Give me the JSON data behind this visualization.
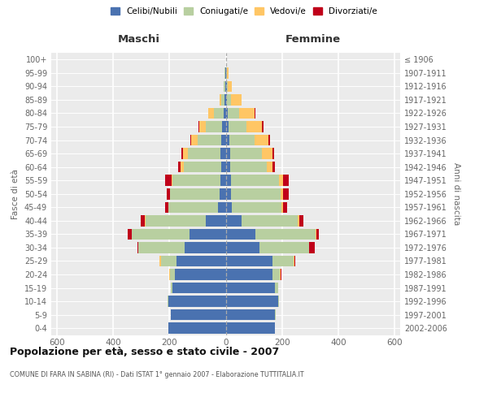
{
  "age_groups": [
    "0-4",
    "5-9",
    "10-14",
    "15-19",
    "20-24",
    "25-29",
    "30-34",
    "35-39",
    "40-44",
    "45-49",
    "50-54",
    "55-59",
    "60-64",
    "65-69",
    "70-74",
    "75-79",
    "80-84",
    "85-89",
    "90-94",
    "95-99",
    "100+"
  ],
  "birth_years": [
    "2002-2006",
    "1997-2001",
    "1992-1996",
    "1987-1991",
    "1982-1986",
    "1977-1981",
    "1972-1976",
    "1967-1971",
    "1962-1966",
    "1957-1961",
    "1952-1956",
    "1947-1951",
    "1942-1946",
    "1937-1941",
    "1932-1936",
    "1927-1931",
    "1922-1926",
    "1917-1921",
    "1912-1916",
    "1907-1911",
    "≤ 1906"
  ],
  "maschi": {
    "celibi": [
      205,
      195,
      205,
      190,
      180,
      175,
      145,
      130,
      70,
      28,
      22,
      18,
      15,
      18,
      15,
      12,
      8,
      5,
      2,
      1,
      0
    ],
    "coniugati": [
      0,
      0,
      2,
      5,
      18,
      55,
      165,
      205,
      215,
      175,
      175,
      170,
      135,
      115,
      85,
      60,
      35,
      10,
      4,
      2,
      0
    ],
    "vedovi": [
      0,
      0,
      0,
      0,
      2,
      5,
      0,
      0,
      2,
      1,
      2,
      5,
      10,
      18,
      22,
      22,
      18,
      6,
      2,
      0,
      0
    ],
    "divorziati": [
      0,
      0,
      0,
      0,
      2,
      2,
      5,
      12,
      14,
      12,
      12,
      22,
      8,
      6,
      5,
      2,
      1,
      1,
      0,
      0,
      0
    ]
  },
  "femmine": {
    "nubili": [
      175,
      175,
      185,
      175,
      165,
      165,
      120,
      105,
      55,
      22,
      20,
      18,
      15,
      15,
      12,
      10,
      8,
      5,
      3,
      2,
      0
    ],
    "coniugate": [
      0,
      2,
      5,
      10,
      28,
      75,
      175,
      215,
      200,
      175,
      175,
      170,
      130,
      115,
      90,
      65,
      40,
      15,
      5,
      2,
      0
    ],
    "vedove": [
      0,
      0,
      0,
      0,
      2,
      5,
      2,
      2,
      6,
      8,
      10,
      15,
      20,
      35,
      50,
      55,
      55,
      35,
      15,
      5,
      0
    ],
    "divorziate": [
      0,
      0,
      0,
      0,
      2,
      2,
      20,
      10,
      15,
      12,
      18,
      20,
      10,
      8,
      5,
      5,
      2,
      2,
      0,
      0,
      0
    ]
  },
  "colors": {
    "celibi": "#4a72b0",
    "coniugati": "#b8cfa0",
    "vedovi": "#ffc665",
    "divorziati": "#c0001a"
  },
  "xlim": 620,
  "title": "Popolazione per età, sesso e stato civile - 2007",
  "subtitle": "COMUNE DI FARA IN SABINA (RI) - Dati ISTAT 1° gennaio 2007 - Elaborazione TUTTITALIA.IT",
  "ylabel_left": "Fasce di età",
  "ylabel_right": "Anni di nascita",
  "label_maschi": "Maschi",
  "label_femmine": "Femmine",
  "bg_color": "#ffffff",
  "plot_bg": "#ebebeb",
  "legend_labels": [
    "Celibi/Nubili",
    "Coniugati/e",
    "Vedovi/e",
    "Divorziati/e"
  ]
}
